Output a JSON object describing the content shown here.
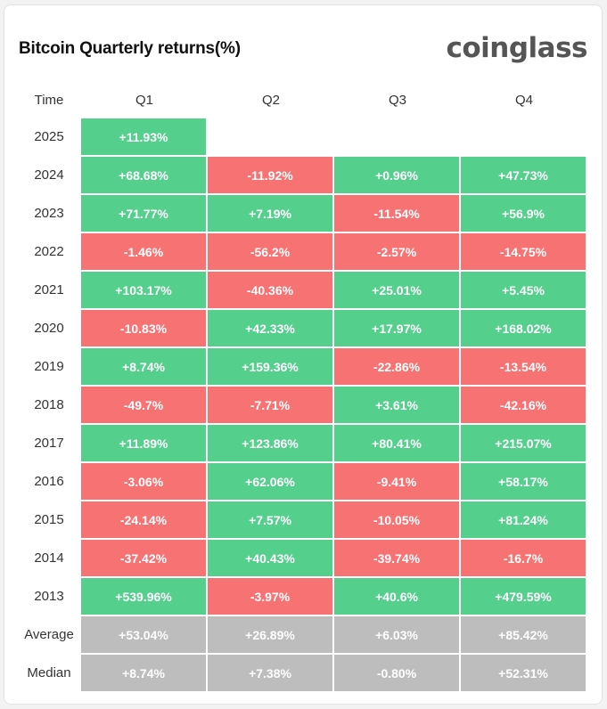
{
  "header": {
    "title": "Bitcoin Quarterly returns(%)",
    "logo_text": "coinglass"
  },
  "colors": {
    "positive": "#55cf8c",
    "negative": "#f77272",
    "summary": "#bdbdbd"
  },
  "chart_data": {
    "type": "table",
    "corner_label": "Time",
    "columns": [
      "Q1",
      "Q2",
      "Q3",
      "Q4"
    ],
    "rows": [
      {
        "label": "2025",
        "kind": "year",
        "cells": [
          "+11.93%",
          null,
          null,
          null
        ]
      },
      {
        "label": "2024",
        "kind": "year",
        "cells": [
          "+68.68%",
          "-11.92%",
          "+0.96%",
          "+47.73%"
        ]
      },
      {
        "label": "2023",
        "kind": "year",
        "cells": [
          "+71.77%",
          "+7.19%",
          "-11.54%",
          "+56.9%"
        ]
      },
      {
        "label": "2022",
        "kind": "year",
        "cells": [
          "-1.46%",
          "-56.2%",
          "-2.57%",
          "-14.75%"
        ]
      },
      {
        "label": "2021",
        "kind": "year",
        "cells": [
          "+103.17%",
          "-40.36%",
          "+25.01%",
          "+5.45%"
        ]
      },
      {
        "label": "2020",
        "kind": "year",
        "cells": [
          "-10.83%",
          "+42.33%",
          "+17.97%",
          "+168.02%"
        ]
      },
      {
        "label": "2019",
        "kind": "year",
        "cells": [
          "+8.74%",
          "+159.36%",
          "-22.86%",
          "-13.54%"
        ]
      },
      {
        "label": "2018",
        "kind": "year",
        "cells": [
          "-49.7%",
          "-7.71%",
          "+3.61%",
          "-42.16%"
        ]
      },
      {
        "label": "2017",
        "kind": "year",
        "cells": [
          "+11.89%",
          "+123.86%",
          "+80.41%",
          "+215.07%"
        ]
      },
      {
        "label": "2016",
        "kind": "year",
        "cells": [
          "-3.06%",
          "+62.06%",
          "-9.41%",
          "+58.17%"
        ]
      },
      {
        "label": "2015",
        "kind": "year",
        "cells": [
          "-24.14%",
          "+7.57%",
          "-10.05%",
          "+81.24%"
        ]
      },
      {
        "label": "2014",
        "kind": "year",
        "cells": [
          "-37.42%",
          "+40.43%",
          "-39.74%",
          "-16.7%"
        ]
      },
      {
        "label": "2013",
        "kind": "year",
        "cells": [
          "+539.96%",
          "-3.97%",
          "+40.6%",
          "+479.59%"
        ]
      },
      {
        "label": "Average",
        "kind": "summary",
        "cells": [
          "+53.04%",
          "+26.89%",
          "+6.03%",
          "+85.42%"
        ]
      },
      {
        "label": "Median",
        "kind": "summary",
        "cells": [
          "+8.74%",
          "+7.38%",
          "-0.80%",
          "+52.31%"
        ]
      }
    ]
  }
}
